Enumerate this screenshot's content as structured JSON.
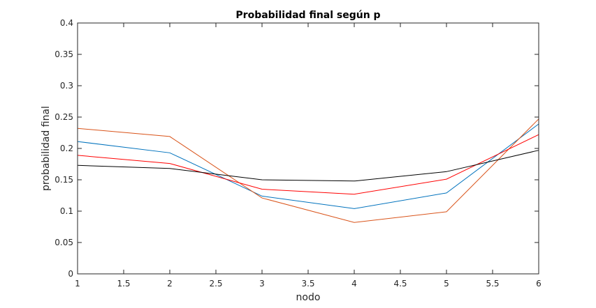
{
  "chart_data": {
    "type": "line",
    "title": "Probabilidad final según p",
    "xlabel": "nodo",
    "ylabel": "probabilidad final",
    "xlim": [
      1,
      6
    ],
    "ylim": [
      0,
      0.4
    ],
    "xticks": [
      1,
      1.5,
      2,
      2.5,
      3,
      3.5,
      4,
      4.5,
      5,
      5.5,
      6
    ],
    "xtick_labels": [
      "1",
      "1.5",
      "2",
      "2.5",
      "3",
      "3.5",
      "4",
      "4.5",
      "5",
      "5.5",
      "6"
    ],
    "yticks": [
      0,
      0.05,
      0.1,
      0.15,
      0.2,
      0.25,
      0.3,
      0.35,
      0.4
    ],
    "ytick_labels": [
      "0",
      "0.05",
      "0.1",
      "0.15",
      "0.2",
      "0.25",
      "0.3",
      "0.35",
      "0.4"
    ],
    "grid": false,
    "x": [
      1,
      2,
      3,
      4,
      5,
      6
    ],
    "series": [
      {
        "color": "#0072BD",
        "values": [
          0.211,
          0.193,
          0.124,
          0.104,
          0.129,
          0.239
        ]
      },
      {
        "color": "#D95319",
        "values": [
          0.232,
          0.219,
          0.121,
          0.082,
          0.099,
          0.247
        ]
      },
      {
        "color": "#FF0000",
        "values": [
          0.189,
          0.176,
          0.135,
          0.127,
          0.151,
          0.222
        ]
      },
      {
        "color": "#000000",
        "values": [
          0.173,
          0.168,
          0.15,
          0.148,
          0.163,
          0.197
        ]
      }
    ]
  }
}
